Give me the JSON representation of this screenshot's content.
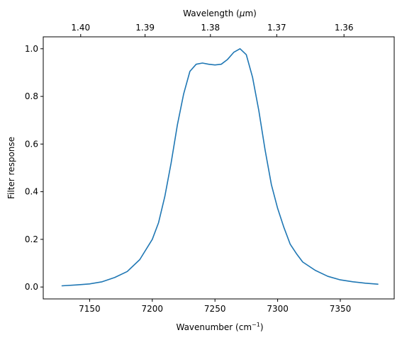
{
  "chart_data": {
    "type": "line",
    "xlabel": "Wavenumber (cm",
    "xlabel_sup": "−1",
    "xlabel_end": ")",
    "ylabel": "Filter response",
    "top_xlabel": "Wavelength (",
    "top_xlabel_mu": "μ",
    "top_xlabel_end": "m)",
    "xlim": [
      7113,
      7393
    ],
    "ylim": [
      -0.05,
      1.05
    ],
    "grid": false,
    "x_ticks": [
      7150,
      7200,
      7250,
      7300,
      7350
    ],
    "x_tick_labels": [
      "7150",
      "7200",
      "7250",
      "7300",
      "7350"
    ],
    "y_ticks": [
      0.0,
      0.2,
      0.4,
      0.6,
      0.8,
      1.0
    ],
    "y_tick_labels": [
      "0.0",
      "0.2",
      "0.4",
      "0.6",
      "0.8",
      "1.0"
    ],
    "top_x_ticks": [
      1.4,
      1.39,
      1.38,
      1.37,
      1.36
    ],
    "top_x_tick_labels": [
      "1.40",
      "1.39",
      "1.38",
      "1.37",
      "1.36"
    ],
    "series": [
      {
        "color": "#1f77b4",
        "x": [
          7128,
          7140,
          7150,
          7160,
          7170,
          7180,
          7190,
          7200,
          7205,
          7210,
          7215,
          7220,
          7225,
          7230,
          7235,
          7240,
          7245,
          7250,
          7255,
          7260,
          7265,
          7270,
          7275,
          7280,
          7285,
          7290,
          7295,
          7300,
          7305,
          7310,
          7315,
          7320,
          7330,
          7340,
          7350,
          7360,
          7370,
          7380
        ],
        "y": [
          0.005,
          0.009,
          0.013,
          0.022,
          0.04,
          0.065,
          0.115,
          0.2,
          0.27,
          0.38,
          0.52,
          0.68,
          0.81,
          0.905,
          0.935,
          0.94,
          0.935,
          0.932,
          0.935,
          0.955,
          0.985,
          1.0,
          0.975,
          0.88,
          0.74,
          0.575,
          0.43,
          0.33,
          0.25,
          0.18,
          0.14,
          0.105,
          0.07,
          0.045,
          0.03,
          0.022,
          0.016,
          0.012
        ]
      }
    ]
  }
}
